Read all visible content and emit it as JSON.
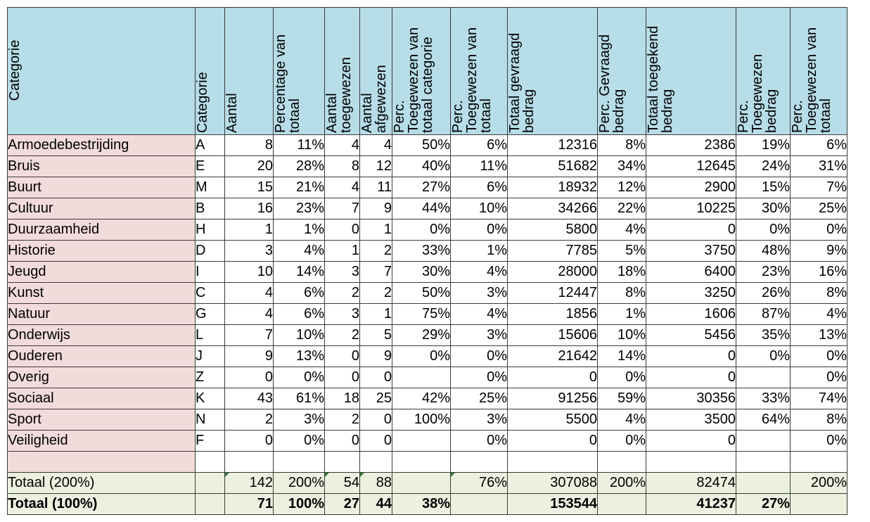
{
  "headers": [
    [
      "Categorie"
    ],
    [
      "Categorie"
    ],
    [
      "Aantal"
    ],
    [
      "Percentage van",
      "totaal"
    ],
    [
      "Aantal",
      "toegewezen"
    ],
    [
      "Aantal",
      "afgewezen"
    ],
    [
      "Perc.",
      "Toegewezen van",
      "totaal categorie"
    ],
    [
      "Perc.",
      "Toegewezen van",
      "totaal"
    ],
    [
      "Totaal gevraagd",
      "bedrag"
    ],
    [
      "Perc. Gevraagd",
      "bedrag"
    ],
    [
      "Totaal toegekend",
      "bedrag"
    ],
    [
      "Perc.",
      "Toegewezen",
      "bedrag"
    ],
    [
      "Perc.",
      "Toegewezen van",
      "totaal"
    ]
  ],
  "rows": [
    [
      "Armoedebestrijding",
      "A",
      "8",
      "11%",
      "4",
      "4",
      "50%",
      "6%",
      "12316",
      "8%",
      "2386",
      "19%",
      "6%"
    ],
    [
      "Bruis",
      "E",
      "20",
      "28%",
      "8",
      "12",
      "40%",
      "11%",
      "51682",
      "34%",
      "12645",
      "24%",
      "31%"
    ],
    [
      "Buurt",
      "M",
      "15",
      "21%",
      "4",
      "11",
      "27%",
      "6%",
      "18932",
      "12%",
      "2900",
      "15%",
      "7%"
    ],
    [
      "Cultuur",
      "B",
      "16",
      "23%",
      "7",
      "9",
      "44%",
      "10%",
      "34266",
      "22%",
      "10225",
      "30%",
      "25%"
    ],
    [
      "Duurzaamheid",
      "H",
      "1",
      "1%",
      "0",
      "1",
      "0%",
      "0%",
      "5800",
      "4%",
      "0",
      "0%",
      "0%"
    ],
    [
      "Historie",
      "D",
      "3",
      "4%",
      "1",
      "2",
      "33%",
      "1%",
      "7785",
      "5%",
      "3750",
      "48%",
      "9%"
    ],
    [
      "Jeugd",
      "I",
      "10",
      "14%",
      "3",
      "7",
      "30%",
      "4%",
      "28000",
      "18%",
      "6400",
      "23%",
      "16%"
    ],
    [
      "Kunst",
      "C",
      "4",
      "6%",
      "2",
      "2",
      "50%",
      "3%",
      "12447",
      "8%",
      "3250",
      "26%",
      "8%"
    ],
    [
      "Natuur",
      "G",
      "4",
      "6%",
      "3",
      "1",
      "75%",
      "4%",
      "1856",
      "1%",
      "1606",
      "87%",
      "4%"
    ],
    [
      "Onderwijs",
      "L",
      "7",
      "10%",
      "2",
      "5",
      "29%",
      "3%",
      "15606",
      "10%",
      "5456",
      "35%",
      "13%"
    ],
    [
      "Ouderen",
      "J",
      "9",
      "13%",
      "0",
      "9",
      "0%",
      "0%",
      "21642",
      "14%",
      "0",
      "0%",
      "0%"
    ],
    [
      "Overig",
      "Z",
      "0",
      "0%",
      "0",
      "0",
      "",
      "0%",
      "0",
      "0%",
      "0",
      "",
      "0%"
    ],
    [
      "Sociaal",
      "K",
      "43",
      "61%",
      "18",
      "25",
      "42%",
      "25%",
      "91256",
      "59%",
      "30356",
      "33%",
      "74%"
    ],
    [
      "Sport",
      "N",
      "2",
      "3%",
      "2",
      "0",
      "100%",
      "3%",
      "5500",
      "4%",
      "3500",
      "64%",
      "8%"
    ],
    [
      "Veiligheid",
      "F",
      "0",
      "0%",
      "0",
      "0",
      "",
      "0%",
      "0",
      "0%",
      "0",
      "",
      "0%"
    ]
  ],
  "totals": [
    [
      "Totaal (200%)",
      "",
      "142",
      "200%",
      "54",
      "88",
      "",
      "76%",
      "307088",
      "200%",
      "82474",
      "",
      "200%"
    ],
    [
      "Totaal (100%)",
      "",
      "71",
      "100%",
      "27",
      "44",
      "38%",
      "",
      "153544",
      "",
      "41237",
      "27%",
      ""
    ]
  ]
}
